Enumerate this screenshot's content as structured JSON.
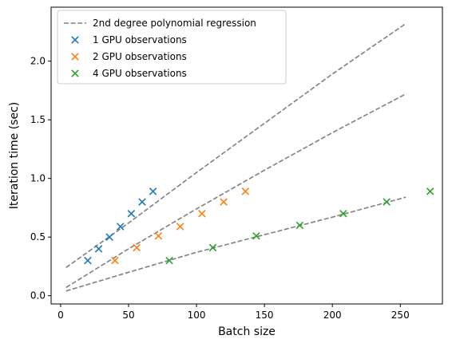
{
  "chart_data": {
    "type": "scatter",
    "title": "",
    "xlabel": "Batch size",
    "ylabel": "Iteration time (sec)",
    "xlim": [
      -7,
      281
    ],
    "ylim": [
      -0.07,
      2.46
    ],
    "xticks": [
      0,
      50,
      100,
      150,
      200,
      250
    ],
    "yticks": [
      0.0,
      0.5,
      1.0,
      1.5,
      2.0,
      2.5
    ],
    "grid": false,
    "legend_position": "upper-left",
    "legend": [
      {
        "label": "2nd degree polynomial regression",
        "marker": "dashed-line",
        "color": "#808080"
      },
      {
        "label": "1 GPU observations",
        "marker": "x",
        "color": "#1f77b4"
      },
      {
        "label": "2 GPU observations",
        "marker": "x",
        "color": "#ff7f0e"
      },
      {
        "label": "4 GPU observations",
        "marker": "x",
        "color": "#2ca02c"
      }
    ],
    "series": [
      {
        "name": "1 GPU observations",
        "color": "#1f77b4",
        "marker": "x",
        "x": [
          20,
          28,
          36,
          44,
          52,
          60,
          68
        ],
        "y": [
          0.3,
          0.4,
          0.5,
          0.59,
          0.7,
          0.8,
          0.89
        ]
      },
      {
        "name": "2 GPU observations",
        "color": "#ff7f0e",
        "marker": "x",
        "x": [
          40,
          56,
          72,
          88,
          104,
          120,
          136
        ],
        "y": [
          0.3,
          0.41,
          0.51,
          0.59,
          0.7,
          0.8,
          0.89
        ]
      },
      {
        "name": "4 GPU observations",
        "color": "#2ca02c",
        "marker": "x",
        "x": [
          80,
          112,
          144,
          176,
          208,
          240,
          272
        ],
        "y": [
          0.3,
          0.41,
          0.51,
          0.6,
          0.7,
          0.8,
          0.89
        ]
      }
    ],
    "regression_lines": [
      {
        "name": "2nd degree polynomial regression",
        "for": "1 GPU observations",
        "color": "#808080",
        "style": "dashed",
        "points": [
          [
            4,
            0.24
          ],
          [
            50,
            0.62
          ],
          [
            100,
            1.05
          ],
          [
            150,
            1.47
          ],
          [
            200,
            1.89
          ],
          [
            254,
            2.32
          ]
        ]
      },
      {
        "name": "2nd degree polynomial regression",
        "for": "2 GPU observations",
        "color": "#808080",
        "style": "dashed",
        "points": [
          [
            4,
            0.07
          ],
          [
            50,
            0.4
          ],
          [
            100,
            0.74
          ],
          [
            150,
            1.07
          ],
          [
            200,
            1.39
          ],
          [
            254,
            1.72
          ]
        ]
      },
      {
        "name": "2nd degree polynomial regression",
        "for": "4 GPU observations",
        "color": "#808080",
        "style": "dashed",
        "points": [
          [
            4,
            0.04
          ],
          [
            50,
            0.2
          ],
          [
            100,
            0.37
          ],
          [
            150,
            0.52
          ],
          [
            200,
            0.67
          ],
          [
            254,
            0.84
          ]
        ]
      }
    ]
  }
}
